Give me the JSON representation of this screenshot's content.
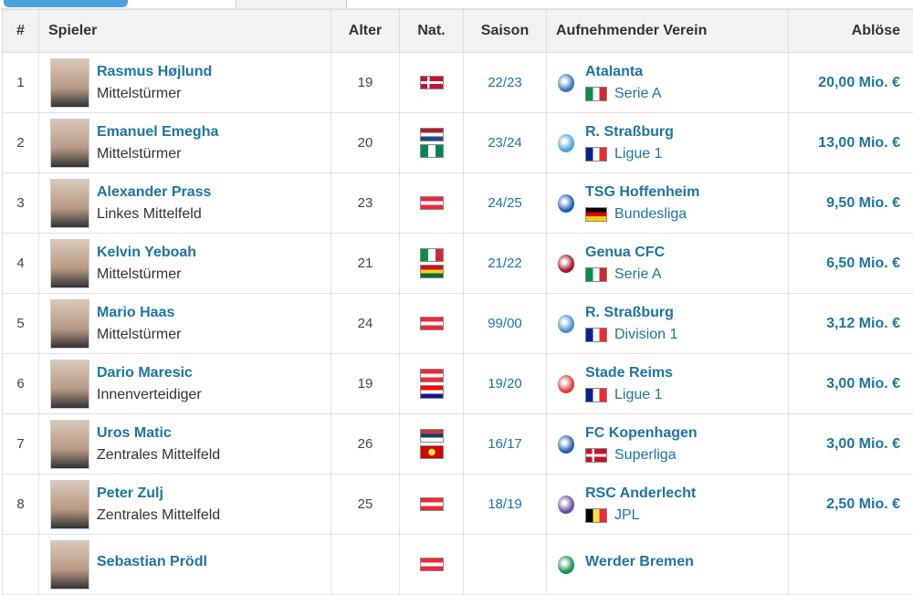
{
  "header": {
    "num": "#",
    "player": "Spieler",
    "age": "Alter",
    "nat": "Nat.",
    "season": "Saison",
    "club": "Aufnehmender Verein",
    "fee": "Ablöse"
  },
  "rows": [
    {
      "num": "1",
      "name": "Rasmus Højlund",
      "pos": "Mittelstürmer",
      "age": "19",
      "nats": [
        "dk"
      ],
      "season": "22/23",
      "club": "Atalanta",
      "logo": "#3c78c0",
      "league_flag": "it",
      "league": "Serie A",
      "fee": "20,00 Mio. €"
    },
    {
      "num": "2",
      "name": "Emanuel Emegha",
      "pos": "Mittelstürmer",
      "age": "20",
      "nats": [
        "nl",
        "ng"
      ],
      "season": "23/24",
      "club": "R. Straßburg",
      "logo": "#4aa3df",
      "league_flag": "fr",
      "league": "Ligue 1",
      "fee": "13,00 Mio. €"
    },
    {
      "num": "3",
      "name": "Alexander Prass",
      "pos": "Linkes Mittelfeld",
      "age": "23",
      "nats": [
        "at"
      ],
      "season": "24/25",
      "club": "TSG Hoffenheim",
      "logo": "#1961b5",
      "league_flag": "de",
      "league": "Bundesliga",
      "fee": "9,50 Mio. €"
    },
    {
      "num": "4",
      "name": "Kelvin Yeboah",
      "pos": "Mittelstürmer",
      "age": "21",
      "nats": [
        "it",
        "gh"
      ],
      "season": "21/22",
      "club": "Genua CFC",
      "logo": "#a3162a",
      "league_flag": "it",
      "league": "Serie A",
      "fee": "6,50 Mio. €"
    },
    {
      "num": "5",
      "name": "Mario Haas",
      "pos": "Mittelstürmer",
      "age": "24",
      "nats": [
        "at"
      ],
      "season": "99/00",
      "club": "R. Straßburg",
      "logo": "#4a8fd0",
      "league_flag": "fr",
      "league": "Division 1",
      "fee": "3,12 Mio. €"
    },
    {
      "num": "6",
      "name": "Dario Maresic",
      "pos": "Innenverteidiger",
      "age": "19",
      "nats": [
        "at",
        "hr"
      ],
      "season": "19/20",
      "club": "Stade Reims",
      "logo": "#e2393a",
      "league_flag": "fr",
      "league": "Ligue 1",
      "fee": "3,00 Mio. €"
    },
    {
      "num": "7",
      "name": "Uros Matic",
      "pos": "Zentrales Mittelfeld",
      "age": "26",
      "nats": [
        "rs",
        "mk"
      ],
      "season": "16/17",
      "club": "FC Kopenhagen",
      "logo": "#2a5fb0",
      "league_flag": "dk",
      "league": "Superliga",
      "fee": "3,00 Mio. €"
    },
    {
      "num": "8",
      "name": "Peter Zulj",
      "pos": "Zentrales Mittelfeld",
      "age": "25",
      "nats": [
        "at"
      ],
      "season": "18/19",
      "club": "RSC Anderlecht",
      "logo": "#6b4ea0",
      "league_flag": "be",
      "league": "JPL",
      "fee": "2,50 Mio. €"
    },
    {
      "num": "",
      "name": "Sebastian Prödl",
      "pos": "",
      "age": "",
      "nats": [
        "at"
      ],
      "season": "",
      "club": "Werder Bremen",
      "logo": "#1d9053",
      "league_flag": "",
      "league": "",
      "fee": ""
    }
  ]
}
